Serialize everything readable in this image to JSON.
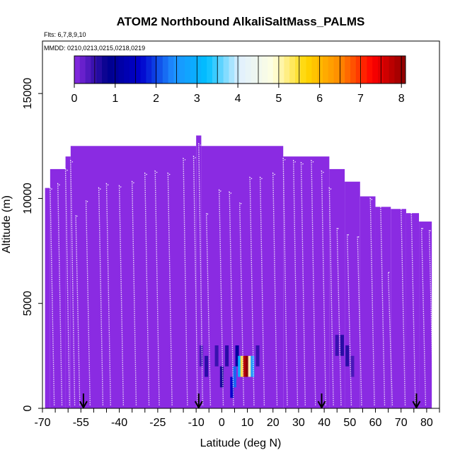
{
  "chart_data": {
    "type": "heatmap",
    "title": "ATOM2 Northbound AlkaliSaltMass_PALMS",
    "subtitle_lines": [
      "Flts: 6,7,8,9,10",
      "MMDD: 0210,0213,0215,0218,0219"
    ],
    "xlabel": "Latitude (deg N)",
    "ylabel": "Altitude (m)",
    "xlim": [
      -70,
      85
    ],
    "ylim": [
      0,
      17500
    ],
    "x_tick_labels": [
      "-70",
      "-55",
      "-40",
      "-25",
      "-10",
      "0",
      "10",
      "20",
      "30",
      "40",
      "50",
      "60",
      "70",
      "80"
    ],
    "y_tick_labels": [
      "0",
      "5000",
      "10000",
      "15000"
    ],
    "colorbar": {
      "min": 0,
      "max": 8.1,
      "tick_labels": [
        "0",
        "1",
        "2",
        "3",
        "4",
        "5",
        "6",
        "7",
        "8"
      ],
      "colors": [
        "#8a2be2",
        "#00008b",
        "#0000cd",
        "#1e90ff",
        "#00bfff",
        "#e0f0ff",
        "#ffffe0",
        "#ffd700",
        "#ff8c00",
        "#ff0000",
        "#8b0000"
      ]
    },
    "background_value": 0,
    "coverage_tops": [
      {
        "lat0": -69,
        "lat1": -67,
        "alt": 10500
      },
      {
        "lat0": -67,
        "lat1": -61,
        "alt": 11400
      },
      {
        "lat0": -61,
        "lat1": -59,
        "alt": 12000
      },
      {
        "lat0": -59,
        "lat1": -10,
        "alt": 12500
      },
      {
        "lat0": -10,
        "lat1": -8,
        "alt": 13000
      },
      {
        "lat0": -8,
        "lat1": 24,
        "alt": 12500
      },
      {
        "lat0": 24,
        "lat1": 42,
        "alt": 12000
      },
      {
        "lat0": 42,
        "lat1": 48,
        "alt": 11400
      },
      {
        "lat0": 48,
        "lat1": 54,
        "alt": 10800
      },
      {
        "lat0": 54,
        "lat1": 60,
        "alt": 10100
      },
      {
        "lat0": 60,
        "lat1": 66,
        "alt": 9600
      },
      {
        "lat0": 66,
        "lat1": 72,
        "alt": 9500
      },
      {
        "lat0": 72,
        "lat1": 77,
        "alt": 9300
      },
      {
        "lat0": 77,
        "lat1": 82,
        "alt": 8900
      }
    ],
    "cells": [
      {
        "lat": -8,
        "alt": 2500,
        "value": 0.4
      },
      {
        "lat": -6,
        "alt": 2000,
        "value": 0.6
      },
      {
        "lat": -2,
        "alt": 2500,
        "value": 0.5
      },
      {
        "lat": 0,
        "alt": 1500,
        "value": 0.7
      },
      {
        "lat": 2,
        "alt": 2500,
        "value": 0.6
      },
      {
        "lat": 4,
        "alt": 1000,
        "value": 1.6
      },
      {
        "lat": 5,
        "alt": 1500,
        "value": 2.2
      },
      {
        "lat": 6,
        "alt": 2500,
        "value": 1.0
      },
      {
        "lat": 7,
        "alt": 2000,
        "value": 3.1
      },
      {
        "lat": 8,
        "alt": 2000,
        "value": 5.4
      },
      {
        "lat": 9,
        "alt": 2000,
        "value": 7.8
      },
      {
        "lat": 10,
        "alt": 2000,
        "value": 8.1
      },
      {
        "lat": 11,
        "alt": 2000,
        "value": 5.0
      },
      {
        "lat": 12,
        "alt": 2000,
        "value": 2.6
      },
      {
        "lat": 14,
        "alt": 2500,
        "value": 0.5
      },
      {
        "lat": 45,
        "alt": 3000,
        "value": 0.5
      },
      {
        "lat": 47,
        "alt": 3000,
        "value": 0.6
      },
      {
        "lat": 49,
        "alt": 2500,
        "value": 0.6
      },
      {
        "lat": 51,
        "alt": 2000,
        "value": 0.4
      }
    ],
    "profiles": [
      {
        "lat": -67,
        "top": 10500
      },
      {
        "lat": -64,
        "top": 10700
      },
      {
        "lat": -61,
        "top": 11400
      },
      {
        "lat": -59,
        "top": 11800
      },
      {
        "lat": -57,
        "top": 9200
      },
      {
        "lat": -53,
        "top": 9900
      },
      {
        "lat": -48,
        "top": 10500
      },
      {
        "lat": -45,
        "top": 10700
      },
      {
        "lat": -40,
        "top": 10600
      },
      {
        "lat": -35,
        "top": 10800
      },
      {
        "lat": -30,
        "top": 11200
      },
      {
        "lat": -26,
        "top": 11300
      },
      {
        "lat": -21,
        "top": 11200
      },
      {
        "lat": -15,
        "top": 11900
      },
      {
        "lat": -11,
        "top": 12000
      },
      {
        "lat": -9,
        "top": 12600
      },
      {
        "lat": -6,
        "top": 9300
      },
      {
        "lat": -1,
        "top": 10400
      },
      {
        "lat": 3,
        "top": 10300
      },
      {
        "lat": 7,
        "top": 9800
      },
      {
        "lat": 11,
        "top": 11000
      },
      {
        "lat": 15,
        "top": 11000
      },
      {
        "lat": 20,
        "top": 11200
      },
      {
        "lat": 24,
        "top": 11900
      },
      {
        "lat": 28,
        "top": 11800
      },
      {
        "lat": 31,
        "top": 11700
      },
      {
        "lat": 35,
        "top": 11800
      },
      {
        "lat": 39,
        "top": 11300
      },
      {
        "lat": 42,
        "top": 10500
      },
      {
        "lat": 45,
        "top": 8600
      },
      {
        "lat": 49,
        "top": 8300
      },
      {
        "lat": 53,
        "top": 8200
      },
      {
        "lat": 58,
        "top": 10000
      },
      {
        "lat": 62,
        "top": 9800
      },
      {
        "lat": 65,
        "top": 6500
      },
      {
        "lat": 70,
        "top": 9600
      },
      {
        "lat": 74,
        "top": 9400
      },
      {
        "lat": 78,
        "top": 8600
      },
      {
        "lat": 81,
        "top": 8500
      }
    ],
    "arrow_markers_lat": [
      -54,
      -9,
      39,
      76
    ]
  }
}
